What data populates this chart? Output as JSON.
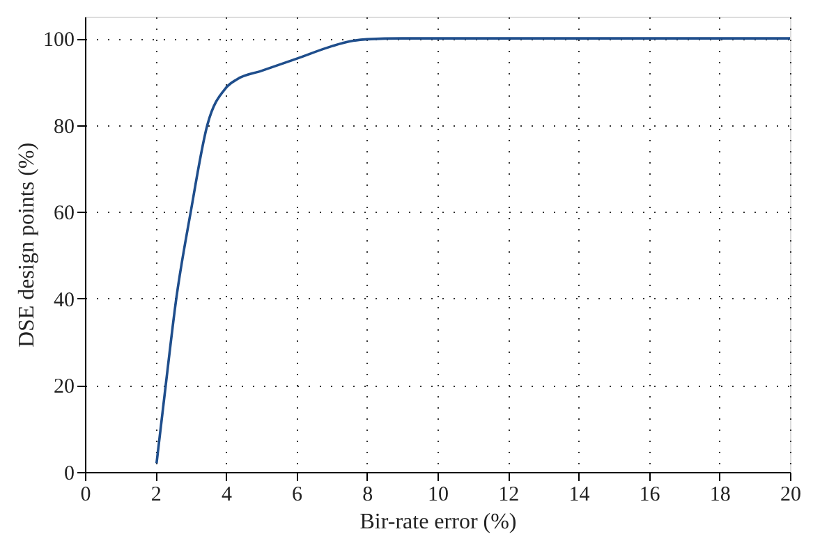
{
  "chart_data": {
    "type": "line",
    "xlabel": "Bir-rate error (%)",
    "ylabel": "DSE design points (%)",
    "series": [
      {
        "color": "#1f4e8c",
        "x": [
          2.03,
          2.29,
          2.59,
          3.0,
          3.47,
          4.0,
          4.32,
          5.0,
          6.0,
          7.0,
          7.5,
          8.0,
          9.0,
          10.0,
          12.0,
          14.0,
          16.0,
          18.0,
          20.0
        ],
        "values": [
          2,
          20,
          40,
          60,
          80,
          88.6,
          90.6,
          92.5,
          95.3,
          98.2,
          99.3,
          99.8,
          100,
          100,
          100,
          100,
          100,
          100,
          100
        ]
      }
    ],
    "xlim": [
      0,
      20
    ],
    "xticks": [
      0,
      2,
      4,
      6,
      8,
      10,
      12,
      14,
      16,
      18,
      20
    ],
    "ylim": [
      0,
      105
    ],
    "yticks": [
      0,
      20,
      40,
      60,
      80,
      100
    ],
    "grid": true,
    "marker": "none",
    "line_style": "solid"
  }
}
